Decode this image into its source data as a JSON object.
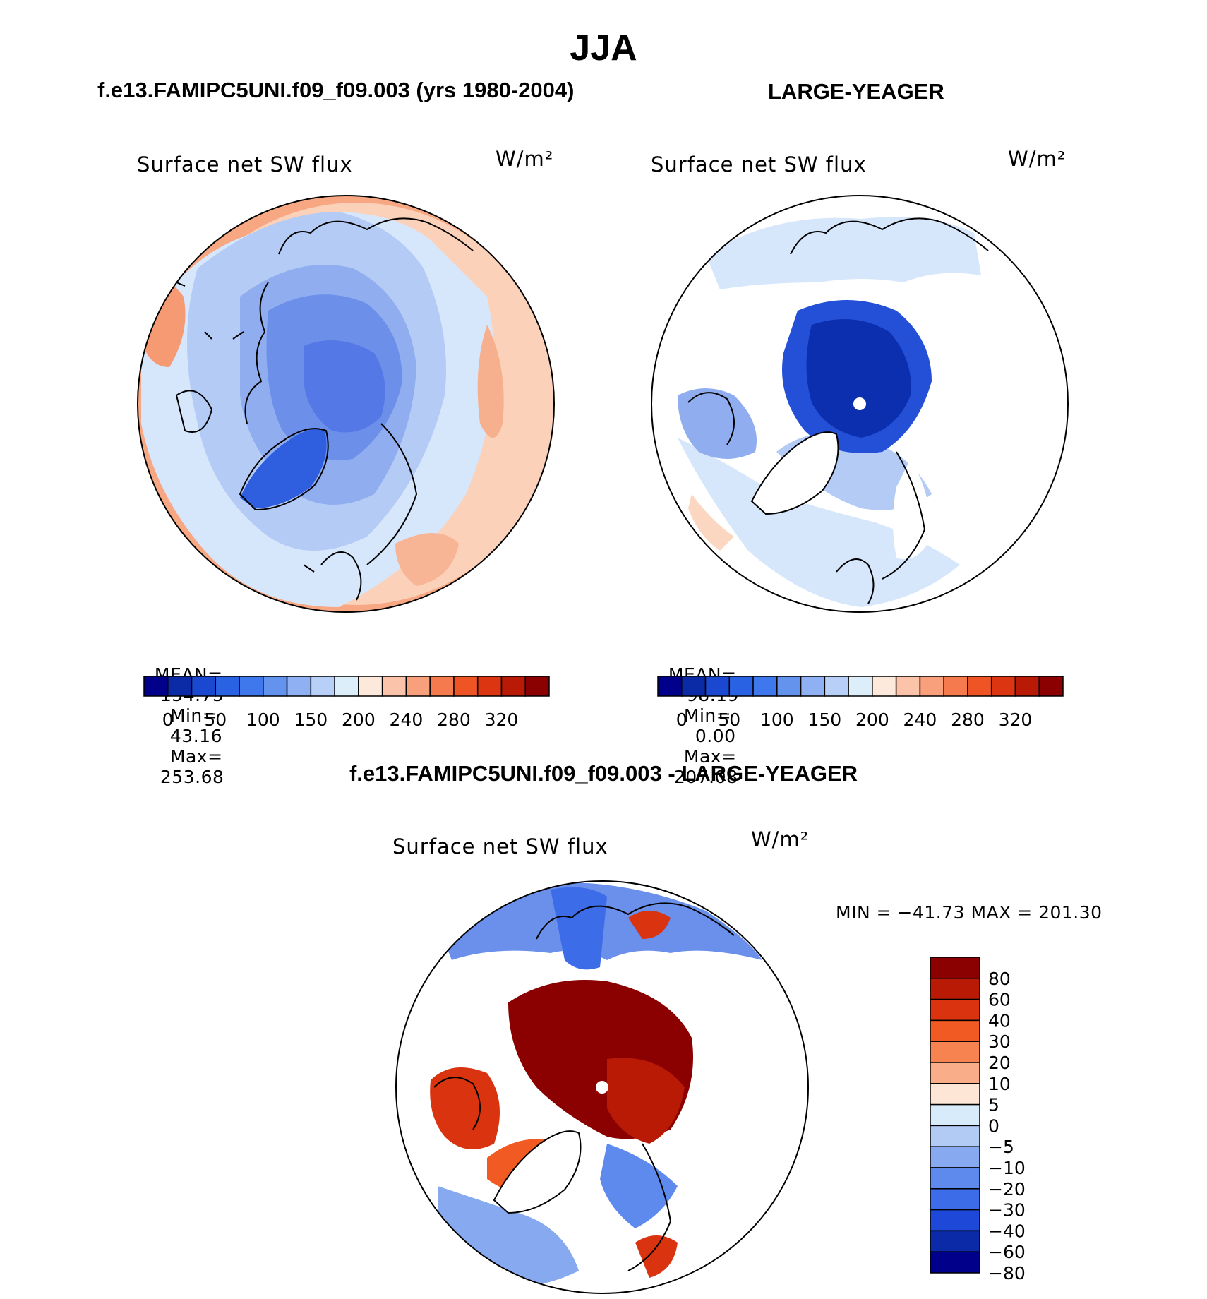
{
  "page": {
    "season_title": "JJA"
  },
  "panels": [
    {
      "header": "f.e13.FAMIPC5UNI.f09_f09.003 (yrs 1980-2004)",
      "variable": "Surface net SW flux",
      "units": "W/m²",
      "stats": {
        "mean_label": "MEAN=",
        "mean": "154.75",
        "min_label": "Min=",
        "min": "43.16",
        "max_label": "Max=",
        "max": "253.68"
      }
    },
    {
      "header": "LARGE-YEAGER",
      "variable": "Surface net SW flux",
      "units": "W/m²",
      "stats": {
        "mean_label": "MEAN=",
        "mean": "98.19",
        "min_label": "Min=",
        "min": "0.00",
        "max_label": "Max=",
        "max": "207.08"
      }
    },
    {
      "header": "f.e13.FAMIPC5UNI.f09_f09.003 - LARGE-YEAGER",
      "variable": "Surface net SW flux",
      "units": "W/m²",
      "minmax_text": "MIN = −41.73 MAX = 201.30"
    }
  ],
  "abs_colorbar": {
    "colors": [
      "#00008b",
      "#0a2aa6",
      "#1a48d0",
      "#2a62e4",
      "#3f78ec",
      "#6493ee",
      "#8fb0f2",
      "#b8cff7",
      "#dceefa",
      "#fde8dc",
      "#fbc4aa",
      "#f8a07c",
      "#f57a4d",
      "#ef5425",
      "#db3511",
      "#b81a06",
      "#8b0000"
    ],
    "tick_labels": [
      "0",
      "50",
      "100",
      "150",
      "200",
      "240",
      "280",
      "320"
    ]
  },
  "diff_colorbar": {
    "colors_top_to_bottom": [
      "#8b0000",
      "#b81a06",
      "#d93310",
      "#f25a24",
      "#f78450",
      "#f9ad88",
      "#fde6d6",
      "#d8ebfa",
      "#b1cbf5",
      "#86a9f0",
      "#5e8aee",
      "#3c6ce8",
      "#1e48d8",
      "#0a2aa8",
      "#00008b"
    ],
    "tick_labels": [
      "80",
      "60",
      "40",
      "30",
      "20",
      "10",
      "5",
      "0",
      "−5",
      "−10",
      "−20",
      "−30",
      "−40",
      "−60",
      "−80"
    ]
  }
}
